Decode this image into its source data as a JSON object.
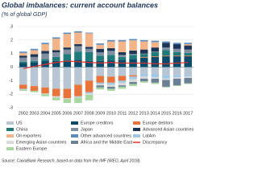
{
  "chart_data": {
    "type": "bar",
    "stacked": true,
    "title": "Global imbalances: current account balances",
    "subtitle": "(% of global GDP)",
    "source": "Source: CaixaBank Research, based on data from the IMF (WEO, April 2018).",
    "categories": [
      "2002",
      "2003",
      "2004",
      "2005",
      "2006",
      "2007",
      "2008",
      "2009",
      "2010",
      "2011",
      "2012",
      "2013",
      "2014",
      "2015",
      "2016",
      "2017"
    ],
    "ylim": [
      -3,
      3
    ],
    "yticks": [
      -3,
      -2,
      -1,
      0,
      1,
      2,
      3
    ],
    "grid": true,
    "series": [
      {
        "name": "US",
        "color": "#b8c6d4",
        "values": [
          -1.3,
          -1.4,
          -1.5,
          -1.6,
          -1.6,
          -1.3,
          -1.0,
          -0.65,
          -0.7,
          -0.65,
          -0.6,
          -0.5,
          -0.5,
          -0.6,
          -0.6,
          -0.6
        ]
      },
      {
        "name": "Europe creditors",
        "color": "#0b4a6b",
        "values": [
          0.3,
          0.35,
          0.45,
          0.45,
          0.5,
          0.55,
          0.45,
          0.45,
          0.5,
          0.55,
          0.6,
          0.7,
          0.75,
          0.8,
          0.8,
          0.8
        ]
      },
      {
        "name": "Europe debtors",
        "color": "#e8743b",
        "values": [
          -0.3,
          -0.35,
          -0.45,
          -0.55,
          -0.7,
          -0.85,
          -0.85,
          -0.5,
          -0.45,
          -0.35,
          -0.1,
          0.05,
          0.05,
          0.05,
          0.05,
          0.05
        ]
      },
      {
        "name": "China",
        "color": "#1e7b7a",
        "values": [
          0.1,
          0.1,
          0.15,
          0.3,
          0.45,
          0.6,
          0.65,
          0.4,
          0.4,
          0.2,
          0.3,
          0.2,
          0.3,
          0.4,
          0.25,
          0.2
        ]
      },
      {
        "name": "Japan",
        "color": "#7f8f9f",
        "values": [
          0.3,
          0.3,
          0.4,
          0.35,
          0.35,
          0.4,
          0.25,
          0.25,
          0.3,
          0.15,
          0.08,
          0.05,
          0.05,
          0.2,
          0.25,
          0.25
        ]
      },
      {
        "name": "Advanced Asian countries",
        "color": "#1d3557",
        "values": [
          0.15,
          0.2,
          0.2,
          0.15,
          0.15,
          0.15,
          0.15,
          0.25,
          0.2,
          0.2,
          0.25,
          0.3,
          0.3,
          0.35,
          0.35,
          0.3
        ]
      },
      {
        "name": "Oil exporters",
        "color": "#f3b48a",
        "values": [
          0.2,
          0.3,
          0.5,
          0.85,
          1.0,
          0.85,
          1.0,
          0.3,
          0.5,
          0.8,
          0.75,
          0.6,
          0.4,
          0,
          0,
          0.1
        ]
      },
      {
        "name": "Other advanced countries",
        "color": "#5b8cc0",
        "values": [
          0.1,
          0.1,
          0.1,
          0.1,
          0.1,
          0.1,
          0.05,
          0.1,
          0.1,
          0.1,
          0.1,
          0.1,
          0.1,
          0.1,
          0.1,
          0.1
        ]
      },
      {
        "name": "LatAm",
        "color": "#9ec8e6",
        "values": [
          -0.05,
          0,
          0,
          0,
          0,
          -0.05,
          -0.1,
          -0.1,
          -0.15,
          -0.15,
          -0.2,
          -0.2,
          -0.25,
          -0.25,
          -0.15,
          -0.1
        ]
      },
      {
        "name": "Emerging Asian countries",
        "color": "#d9d9d9",
        "values": [
          0,
          0,
          -0.05,
          -0.1,
          -0.05,
          -0.05,
          -0.1,
          -0.1,
          -0.15,
          -0.2,
          -0.2,
          -0.15,
          -0.1,
          -0.1,
          -0.1,
          -0.1
        ]
      },
      {
        "name": "Africa and the Middle East",
        "color": "#6b7f95",
        "values": [
          0,
          0,
          0,
          0,
          0,
          0,
          0,
          -0.15,
          -0.15,
          -0.1,
          -0.15,
          -0.2,
          -0.3,
          -0.5,
          -0.5,
          -0.4
        ]
      },
      {
        "name": "Discrepancy",
        "color": "#e0312a",
        "type": "line",
        "values": [
          -0.1,
          0.05,
          0.2,
          0.35,
          0.45,
          0.4,
          0.35,
          0.3,
          0.35,
          0.3,
          0.3,
          0.3,
          0.25,
          0.25,
          0.3,
          0.35
        ]
      },
      {
        "name": "Eastern Europe",
        "color": "#a8d8a0",
        "values": [
          -0.1,
          -0.1,
          -0.15,
          -0.2,
          -0.3,
          -0.4,
          -0.4,
          -0.15,
          -0.15,
          -0.15,
          -0.15,
          -0.1,
          -0.1,
          -0.05,
          -0.05,
          -0.05
        ]
      }
    ]
  }
}
